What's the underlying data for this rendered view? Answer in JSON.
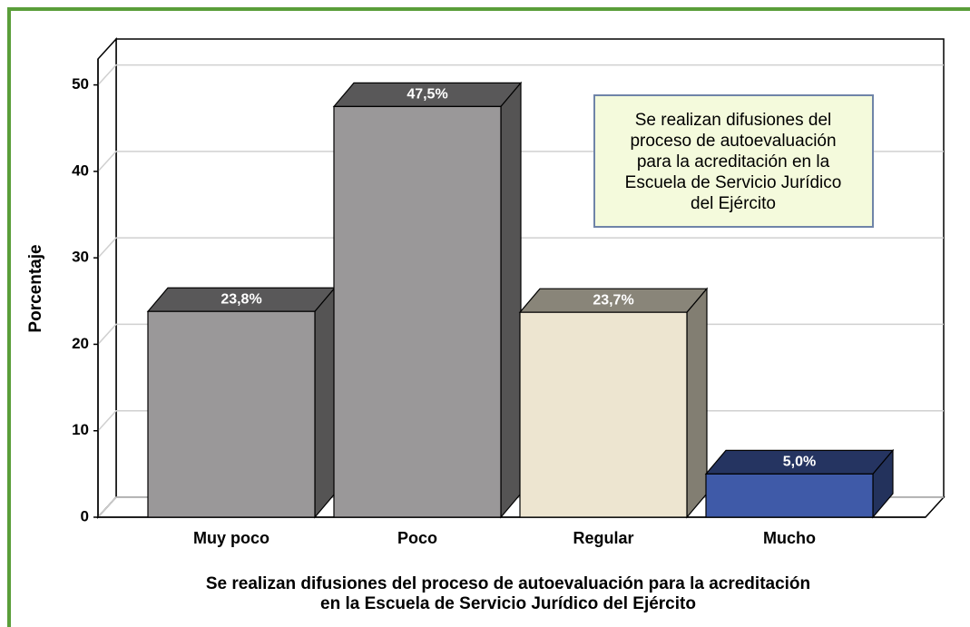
{
  "chart_data": {
    "type": "bar3d",
    "categories": [
      "Muy poco",
      "Poco",
      "Regular",
      "Mucho"
    ],
    "values": [
      23.8,
      47.5,
      23.7,
      5.0
    ],
    "value_labels": [
      "23,8%",
      "47,5%",
      "23,7%",
      "5,0%"
    ],
    "colors": [
      "#9a9899",
      "#9a9899",
      "#ede5d0",
      "#3f5aa8"
    ],
    "ylim": [
      0,
      53
    ],
    "yticks": [
      0,
      10,
      20,
      30,
      40,
      50
    ],
    "grid": true,
    "y_label": "Porcentaje",
    "x_label": [
      "Se realizan difusiones del proceso de autoevaluación para la acreditación",
      "en la Escuela de Servicio Jurídico del Ejército"
    ],
    "annotation": [
      "Se realizan difusiones del",
      "proceso de autoevaluación",
      "para la acreditación en la",
      "Escuela de Servicio Jurídico",
      "del Ejército"
    ]
  }
}
